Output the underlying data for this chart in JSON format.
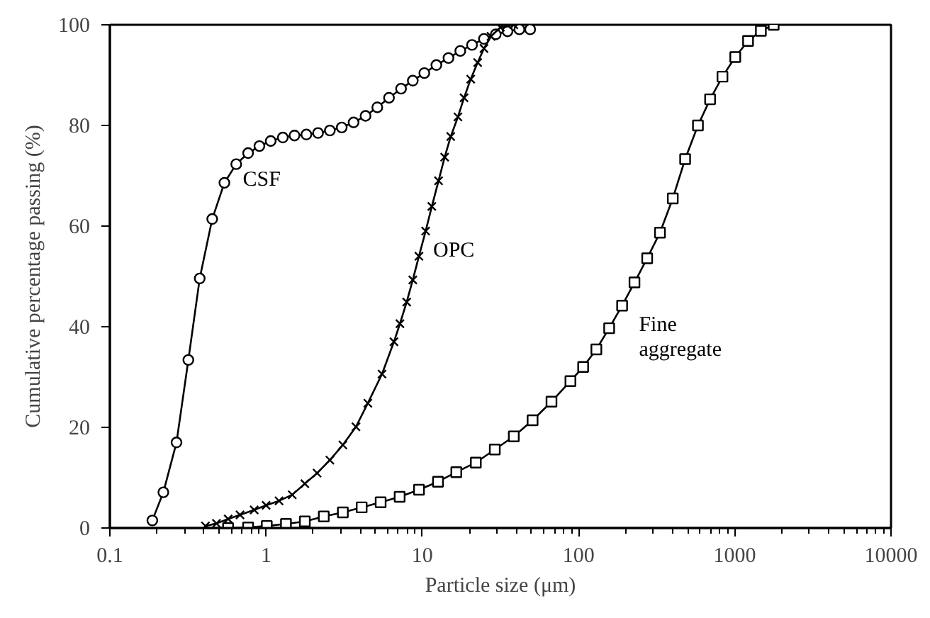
{
  "chart_data": {
    "type": "line",
    "xlabel": "Particle size (μm)",
    "ylabel": "Cumulative percentage passing (%)",
    "log": "x",
    "xlim": [
      0.1,
      10000
    ],
    "xticks": [
      0.1,
      1,
      10,
      100,
      1000,
      10000
    ],
    "ylim": [
      0,
      100
    ],
    "yticks": [
      0,
      20,
      40,
      60,
      80,
      100
    ],
    "grid": false,
    "line_style": "solid",
    "series": [
      {
        "name": "CSF",
        "color": "#000000",
        "marker": "circle",
        "x": [
          0.187,
          0.22,
          0.267,
          0.318,
          0.376,
          0.452,
          0.541,
          0.644,
          0.767,
          0.906,
          1.07,
          1.28,
          1.52,
          1.81,
          2.15,
          2.56,
          3.05,
          3.63,
          4.33,
          5.15,
          6.12,
          7.31,
          8.69,
          10.3,
          12.3,
          14.7,
          17.5,
          20.8,
          24.8,
          29.5,
          35.1,
          41.8,
          49
        ],
        "values": [
          1.5,
          7.1,
          17,
          33.4,
          49.6,
          61.4,
          68.6,
          72.3,
          74.5,
          75.9,
          76.9,
          77.6,
          78,
          78.2,
          78.5,
          79,
          79.6,
          80.6,
          81.9,
          83.6,
          85.5,
          87.3,
          88.9,
          90.4,
          92,
          93.4,
          94.8,
          96,
          97.2,
          98.1,
          98.7,
          99.1,
          99.1
        ]
      },
      {
        "name": "OPC",
        "color": "#000000",
        "marker": "cross",
        "x": [
          0.409,
          0.481,
          0.572,
          0.681,
          0.839,
          1.0,
          1.21,
          1.47,
          1.77,
          2.12,
          2.56,
          3.1,
          3.76,
          4.48,
          5.52,
          6.58,
          7.19,
          7.94,
          8.69,
          9.51,
          10.5,
          11.5,
          12.7,
          13.9,
          15.2,
          16.9,
          18.5,
          20.4,
          22.6,
          24.8,
          27.5,
          31.6,
          38.5
        ],
        "values": [
          0.4,
          0.9,
          1.8,
          2.6,
          3.6,
          4.5,
          5.4,
          6.6,
          8.8,
          10.9,
          13.5,
          16.5,
          20.1,
          24.8,
          30.6,
          37,
          40.6,
          44.9,
          49.3,
          54,
          59,
          63.9,
          69,
          73.7,
          77.8,
          81.7,
          85.5,
          89.2,
          92.5,
          95.3,
          97.7,
          99.5,
          100
        ]
      },
      {
        "name": "Fine\naggregate",
        "color": "#000000",
        "marker": "square",
        "x": [
          0.571,
          0.767,
          1.01,
          1.34,
          1.77,
          2.34,
          3.1,
          4.09,
          5.41,
          7.16,
          9.52,
          12.6,
          16.5,
          22,
          29.1,
          38.5,
          50.8,
          67.1,
          88.7,
          107,
          130,
          157,
          190,
          228,
          275,
          332,
          401,
          481,
          581,
          695,
          834,
          1007,
          1216,
          1469,
          1774
        ],
        "values": [
          0,
          0.1,
          0.4,
          0.8,
          1.3,
          2.3,
          3.1,
          4.1,
          5.1,
          6.2,
          7.6,
          9.2,
          11.1,
          13,
          15.6,
          18.2,
          21.4,
          25.1,
          29.2,
          32,
          35.5,
          39.7,
          44.2,
          48.8,
          53.6,
          58.7,
          65.5,
          73.3,
          80,
          85.2,
          89.7,
          93.6,
          96.8,
          98.8,
          100
        ]
      }
    ]
  }
}
